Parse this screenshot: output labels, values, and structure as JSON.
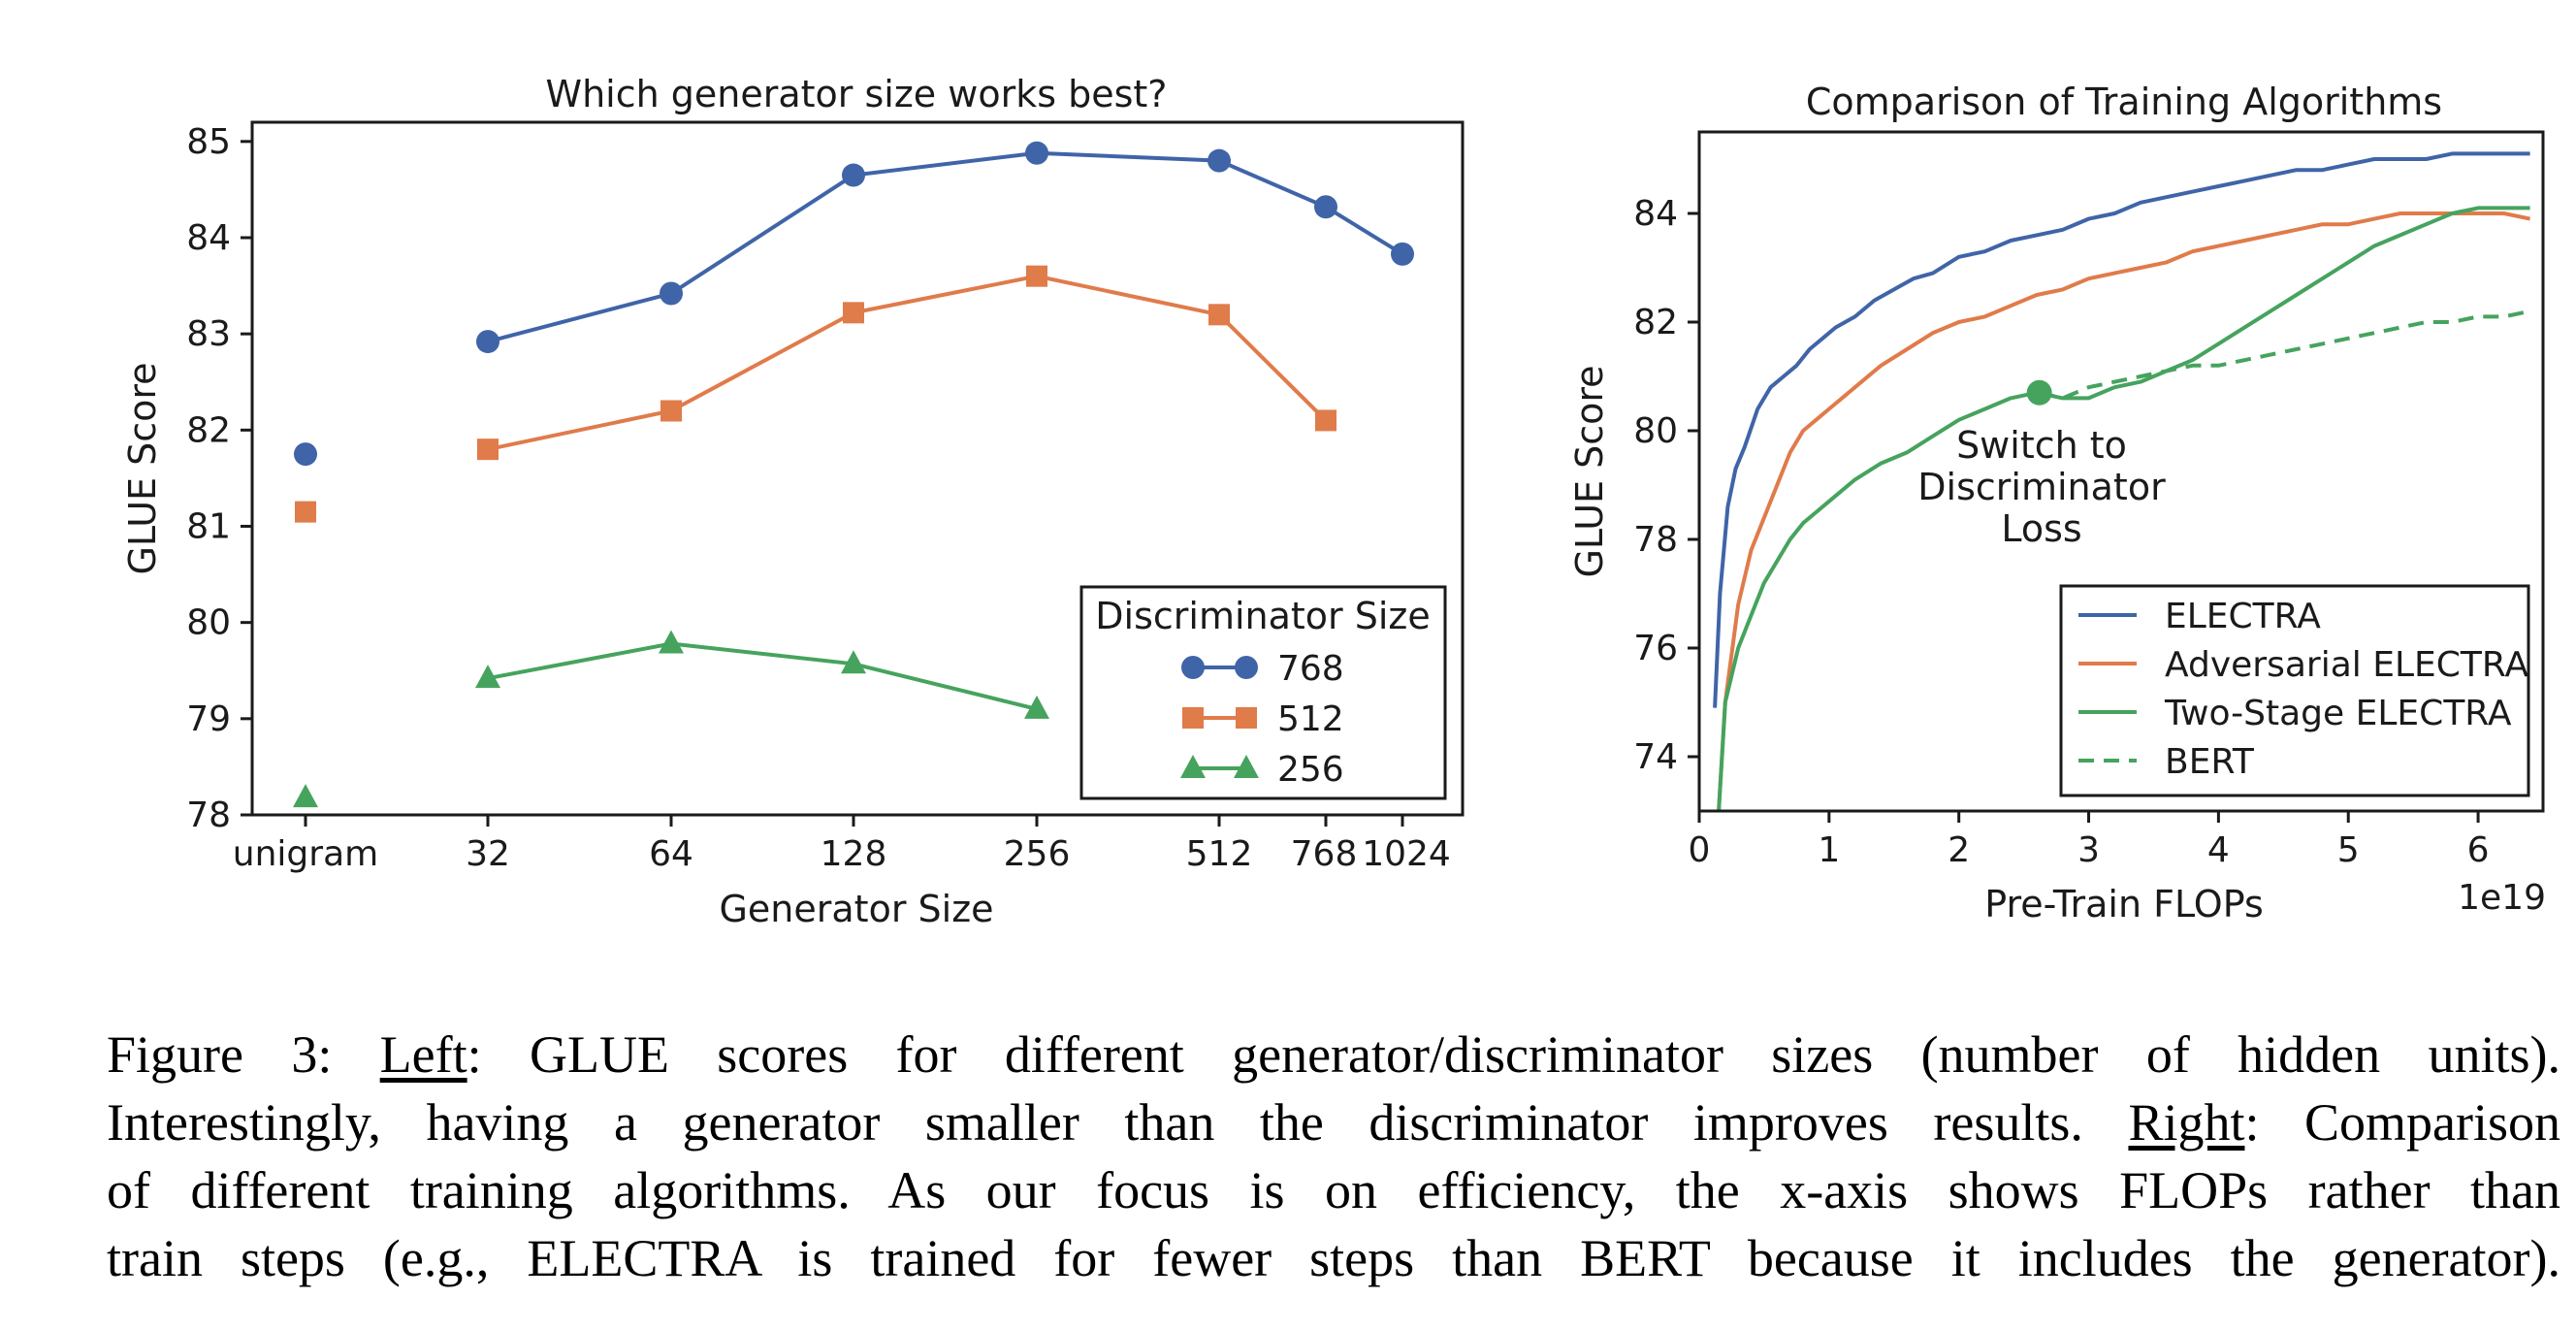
{
  "colors": {
    "blue": "#4064a8",
    "orange": "#e07b4a",
    "green": "#46a35e",
    "axis": "#1a1a1a"
  },
  "chart_data": [
    {
      "type": "line",
      "title": "Which generator size works best?",
      "xlabel": "Generator Size",
      "ylabel": "GLUE Score",
      "categories": [
        "unigram",
        "32",
        "64",
        "128",
        "256",
        "512",
        "768",
        "1024"
      ],
      "ylim": [
        78,
        85.2
      ],
      "yticks": [
        78,
        79,
        80,
        81,
        82,
        83,
        84,
        85
      ],
      "legend": {
        "title": "Discriminator Size",
        "position": "lower-right"
      },
      "series": [
        {
          "name": "768",
          "marker": "circle",
          "color": "#4064a8",
          "values": [
            81.75,
            82.92,
            83.42,
            84.65,
            84.88,
            84.8,
            84.32,
            83.83
          ]
        },
        {
          "name": "512",
          "marker": "square",
          "color": "#e07b4a",
          "values": [
            81.15,
            81.8,
            82.2,
            83.22,
            83.6,
            83.2,
            82.1,
            null
          ]
        },
        {
          "name": "256",
          "marker": "triangle",
          "color": "#46a35e",
          "values": [
            78.18,
            79.42,
            79.78,
            79.57,
            79.1,
            null,
            null,
            null
          ]
        }
      ]
    },
    {
      "type": "line",
      "title": "Comparison of Training Algorithms",
      "xlabel": "Pre-Train FLOPs",
      "x_scale_label": "1e19",
      "ylabel": "GLUE Score",
      "xlim": [
        0,
        6.5
      ],
      "ylim": [
        73,
        85.5
      ],
      "xticks": [
        0,
        1,
        2,
        3,
        4,
        5,
        6
      ],
      "yticks": [
        74,
        76,
        78,
        80,
        82,
        84
      ],
      "legend": {
        "position": "lower-right"
      },
      "annotation": {
        "lines": [
          "Switch to",
          "Discriminator",
          "Loss"
        ],
        "point": [
          2.62,
          80.7
        ]
      },
      "series": [
        {
          "name": "ELECTRA",
          "style": "solid",
          "color": "#4064a8",
          "x": [
            0.12,
            0.16,
            0.22,
            0.28,
            0.35,
            0.45,
            0.55,
            0.65,
            0.75,
            0.85,
            0.95,
            1.05,
            1.2,
            1.35,
            1.5,
            1.65,
            1.8,
            2.0,
            2.2,
            2.4,
            2.6,
            2.8,
            3.0,
            3.2,
            3.4,
            3.6,
            3.8,
            4.0,
            4.2,
            4.4,
            4.6,
            4.8,
            5.0,
            5.2,
            5.4,
            5.6,
            5.8,
            6.0,
            6.2,
            6.4
          ],
          "y": [
            74.9,
            77.0,
            78.6,
            79.3,
            79.7,
            80.4,
            80.8,
            81.0,
            81.2,
            81.5,
            81.7,
            81.9,
            82.1,
            82.4,
            82.6,
            82.8,
            82.9,
            83.2,
            83.3,
            83.5,
            83.6,
            83.7,
            83.9,
            84.0,
            84.2,
            84.3,
            84.4,
            84.5,
            84.6,
            84.7,
            84.8,
            84.8,
            84.9,
            85.0,
            85.0,
            85.0,
            85.1,
            85.1,
            85.1,
            85.1
          ]
        },
        {
          "name": "Adversarial ELECTRA",
          "style": "solid",
          "color": "#e07b4a",
          "x": [
            0.15,
            0.2,
            0.3,
            0.4,
            0.5,
            0.6,
            0.7,
            0.8,
            0.9,
            1.0,
            1.2,
            1.4,
            1.6,
            1.8,
            2.0,
            2.2,
            2.4,
            2.6,
            2.8,
            3.0,
            3.2,
            3.4,
            3.6,
            3.8,
            4.0,
            4.2,
            4.4,
            4.6,
            4.8,
            5.0,
            5.2,
            5.4,
            5.6,
            5.8,
            6.0,
            6.2,
            6.4
          ],
          "y": [
            73.0,
            75.0,
            76.8,
            77.8,
            78.4,
            79.0,
            79.6,
            80.0,
            80.2,
            80.4,
            80.8,
            81.2,
            81.5,
            81.8,
            82.0,
            82.1,
            82.3,
            82.5,
            82.6,
            82.8,
            82.9,
            83.0,
            83.1,
            83.3,
            83.4,
            83.5,
            83.6,
            83.7,
            83.8,
            83.8,
            83.9,
            84.0,
            84.0,
            84.0,
            84.0,
            84.0,
            83.9
          ]
        },
        {
          "name": "Two-Stage ELECTRA",
          "style": "solid",
          "color": "#46a35e",
          "x": [
            0.15,
            0.2,
            0.3,
            0.4,
            0.5,
            0.6,
            0.7,
            0.8,
            0.9,
            1.0,
            1.2,
            1.4,
            1.6,
            1.8,
            2.0,
            2.2,
            2.4,
            2.6,
            2.8,
            3.0,
            3.2,
            3.4,
            3.6,
            3.8,
            4.0,
            4.2,
            4.4,
            4.6,
            4.8,
            5.0,
            5.2,
            5.4,
            5.6,
            5.8,
            6.0,
            6.2,
            6.4
          ],
          "y": [
            73.0,
            75.0,
            76.0,
            76.6,
            77.2,
            77.6,
            78.0,
            78.3,
            78.5,
            78.7,
            79.1,
            79.4,
            79.6,
            79.9,
            80.2,
            80.4,
            80.6,
            80.7,
            80.6,
            80.6,
            80.8,
            80.9,
            81.1,
            81.3,
            81.6,
            81.9,
            82.2,
            82.5,
            82.8,
            83.1,
            83.4,
            83.6,
            83.8,
            84.0,
            84.1,
            84.1,
            84.1
          ]
        },
        {
          "name": "BERT",
          "style": "dashed",
          "color": "#46a35e",
          "x": [
            2.62,
            2.8,
            3.0,
            3.2,
            3.4,
            3.6,
            3.8,
            4.0,
            4.2,
            4.4,
            4.6,
            4.8,
            5.0,
            5.2,
            5.4,
            5.6,
            5.8,
            6.0,
            6.2,
            6.4
          ],
          "y": [
            80.7,
            80.6,
            80.8,
            80.9,
            81.0,
            81.1,
            81.2,
            81.2,
            81.3,
            81.4,
            81.5,
            81.6,
            81.7,
            81.8,
            81.9,
            82.0,
            82.0,
            82.1,
            82.1,
            82.2
          ]
        }
      ]
    }
  ],
  "caption": {
    "label": "Figure 3:",
    "left_word": "Left",
    "text1a": ": GLUE scores for different generator/discriminator sizes (number of hidden units).",
    "text2a": "Interestingly, having a generator smaller than the discriminator improves results. ",
    "right_word": "Right",
    "text2b": ": Comparison",
    "text3": "of different training algorithms. As our focus is on efficiency, the x-axis shows FLOPs rather than",
    "text4": "train steps (e.g., ELECTRA is trained for fewer steps than BERT because it includes the generator)."
  }
}
